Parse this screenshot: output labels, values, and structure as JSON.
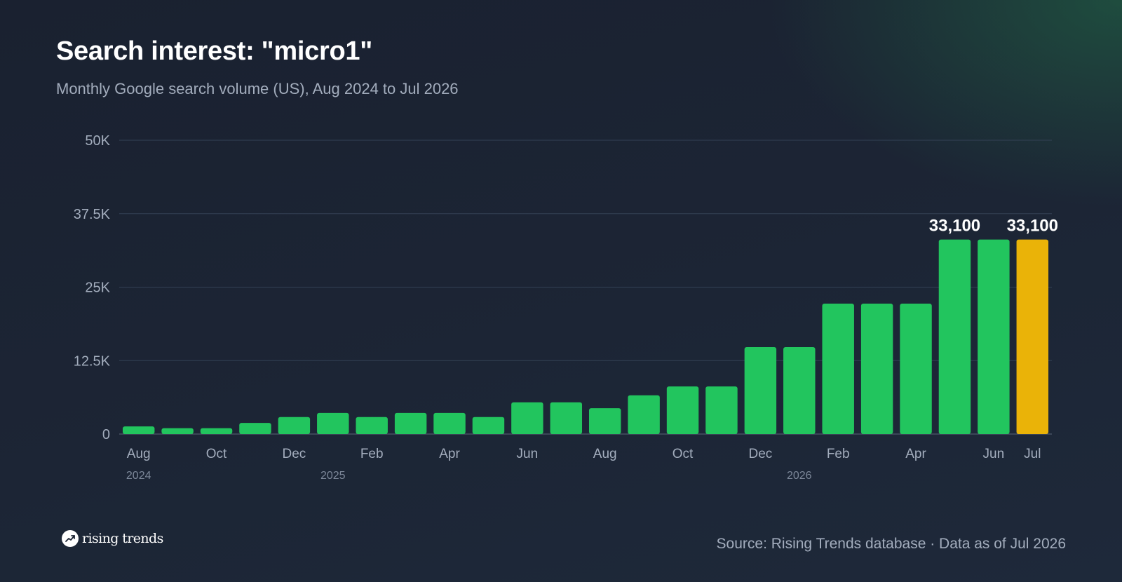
{
  "title": "Search interest: \"micro1\"",
  "subtitle": "Monthly Google search volume (US), Aug 2024 to Jul 2026",
  "brand": {
    "name": "rising trends",
    "icon": "trending-up-icon"
  },
  "source": "Source: Rising Trends database · Data as of Jul 2026",
  "colors": {
    "bar": "#22c55e",
    "highlight": "#eab308",
    "grid": "#334155",
    "axis_text": "#a3adbd",
    "year_text": "#7c8799",
    "value_label": "#ffffff"
  },
  "chart_data": {
    "type": "bar",
    "title": "Search interest: \"micro1\"",
    "subtitle": "Monthly Google search volume (US), Aug 2024 to Jul 2026",
    "categories": [
      "Aug 2024",
      "Sep 2024",
      "Oct 2024",
      "Nov 2024",
      "Dec 2024",
      "Jan 2025",
      "Feb 2025",
      "Mar 2025",
      "Apr 2025",
      "May 2025",
      "Jun 2025",
      "Jul 2025",
      "Aug 2025",
      "Sep 2025",
      "Oct 2025",
      "Nov 2025",
      "Dec 2025",
      "Jan 2026",
      "Feb 2026",
      "Mar 2026",
      "Apr 2026",
      "May 2026",
      "Jun 2026",
      "Jul 2026"
    ],
    "values": [
      1300,
      1000,
      1000,
      1900,
      2900,
      3600,
      2900,
      3600,
      3600,
      2900,
      5400,
      5400,
      4400,
      6600,
      8100,
      8100,
      14800,
      14800,
      22200,
      22200,
      22200,
      33100,
      33100,
      33100
    ],
    "x_tick_labels": [
      "Aug",
      "",
      "Oct",
      "",
      "Dec",
      "",
      "Feb",
      "",
      "Apr",
      "",
      "Jun",
      "",
      "Aug",
      "",
      "Oct",
      "",
      "Dec",
      "",
      "Feb",
      "",
      "Apr",
      "",
      "Jun",
      "Jul"
    ],
    "year_labels": [
      {
        "index": 0,
        "label": "2024"
      },
      {
        "index": 5,
        "label": "2025"
      },
      {
        "index": 17,
        "label": "2026"
      }
    ],
    "data_labels": [
      {
        "index": 21,
        "label": "33,100"
      },
      {
        "index": 23,
        "label": "33,100"
      }
    ],
    "highlight_index": 23,
    "yticks": [
      0,
      12500,
      25000,
      37500,
      50000
    ],
    "ytick_labels": [
      "0",
      "12.5K",
      "25K",
      "37.5K",
      "50K"
    ],
    "ylim": [
      0,
      50000
    ],
    "xlabel": "",
    "ylabel": "",
    "grid": true,
    "legend": "none"
  }
}
